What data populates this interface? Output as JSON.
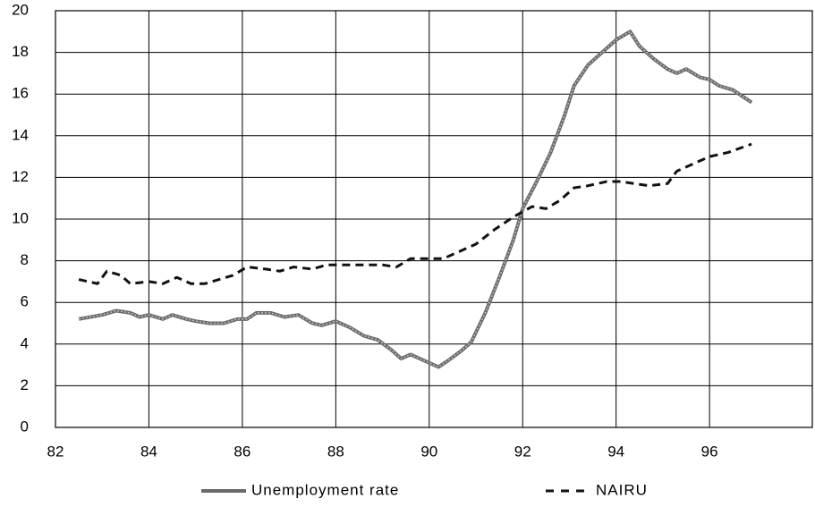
{
  "chart_data": {
    "type": "line",
    "xlim": [
      82,
      98.2
    ],
    "xticks": [
      82,
      84,
      86,
      88,
      90,
      92,
      94,
      96
    ],
    "ylim": [
      0,
      20
    ],
    "yticks": [
      0,
      2,
      4,
      6,
      8,
      10,
      12,
      14,
      16,
      18,
      20
    ],
    "grid": true,
    "legend": "bottom",
    "series": [
      {
        "name": "Unemployment rate",
        "color": "#6a6a6a",
        "style": "solid",
        "x": [
          82.5,
          83,
          83.3,
          83.6,
          83.8,
          84,
          84.3,
          84.5,
          84.8,
          85,
          85.3,
          85.6,
          85.9,
          86.1,
          86.3,
          86.6,
          86.9,
          87.2,
          87.5,
          87.7,
          88,
          88.3,
          88.6,
          88.9,
          89.2,
          89.4,
          89.6,
          89.9,
          90.2,
          90.4,
          90.7,
          90.9,
          91.2,
          91.5,
          91.8,
          92,
          92.3,
          92.6,
          92.9,
          93.1,
          93.4,
          93.7,
          94,
          94.3,
          94.5,
          94.8,
          95.1,
          95.3,
          95.5,
          95.8,
          96,
          96.2,
          96.5,
          96.7,
          96.9
        ],
        "values": [
          5.2,
          5.4,
          5.6,
          5.5,
          5.3,
          5.4,
          5.2,
          5.4,
          5.2,
          5.1,
          5.0,
          5.0,
          5.2,
          5.2,
          5.5,
          5.5,
          5.3,
          5.4,
          5.0,
          4.9,
          5.1,
          4.8,
          4.4,
          4.2,
          3.7,
          3.3,
          3.5,
          3.2,
          2.9,
          3.2,
          3.7,
          4.1,
          5.5,
          7.2,
          9.0,
          10.5,
          11.8,
          13.2,
          15.0,
          16.4,
          17.4,
          18.0,
          18.6,
          19.0,
          18.3,
          17.7,
          17.2,
          17.0,
          17.2,
          16.8,
          16.7,
          16.4,
          16.2,
          15.9,
          15.6
        ]
      },
      {
        "name": "NAIRU",
        "color": "#111111",
        "style": "dashed",
        "x": [
          82.5,
          82.9,
          83.1,
          83.4,
          83.6,
          84,
          84.3,
          84.6,
          84.9,
          85.2,
          85.5,
          85.8,
          86.1,
          86.5,
          86.8,
          87.1,
          87.5,
          87.8,
          88.2,
          88.6,
          89,
          89.3,
          89.6,
          90,
          90.3,
          90.7,
          91,
          91.4,
          91.8,
          92.2,
          92.5,
          92.8,
          93.1,
          93.4,
          93.8,
          94.1,
          94.4,
          94.7,
          95.1,
          95.3,
          95.7,
          96,
          96.4,
          96.9
        ],
        "values": [
          7.1,
          6.9,
          7.5,
          7.3,
          6.9,
          7.0,
          6.9,
          7.2,
          6.9,
          6.9,
          7.1,
          7.3,
          7.7,
          7.6,
          7.5,
          7.7,
          7.6,
          7.8,
          7.8,
          7.8,
          7.8,
          7.7,
          8.1,
          8.1,
          8.1,
          8.5,
          8.8,
          9.5,
          10.1,
          10.6,
          10.5,
          10.9,
          11.5,
          11.6,
          11.8,
          11.8,
          11.7,
          11.6,
          11.7,
          12.3,
          12.7,
          13.0,
          13.2,
          13.6
        ]
      }
    ]
  }
}
